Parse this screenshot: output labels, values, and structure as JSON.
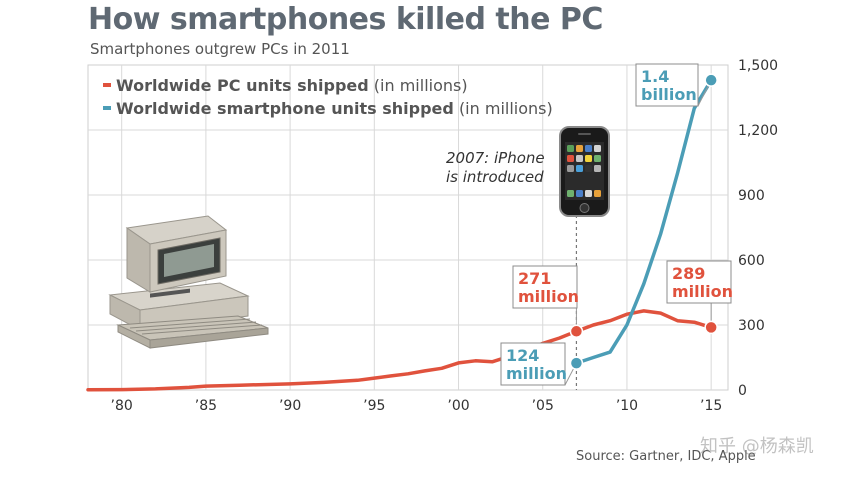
{
  "title": "How smartphones killed the PC",
  "subtitle": "Smartphones outgrew PCs in 2011",
  "source": "Source: Gartner, IDC, Apple",
  "watermark": "知乎 @杨森凯",
  "colors": {
    "pc": "#e0523d",
    "smartphone": "#4b9db6",
    "grid": "#d9d9d9",
    "title": "#5f6973"
  },
  "annotation": {
    "line1": "2007: iPhone",
    "line2": "is introduced"
  },
  "chart_data": {
    "type": "line",
    "title": "How smartphones killed the PC",
    "subtitle": "Smartphones outgrew PCs in 2011",
    "xlabel": "",
    "ylabel": "",
    "xlim": [
      1978,
      2016
    ],
    "ylim": [
      0,
      1500
    ],
    "x_ticks": [
      1980,
      1985,
      1990,
      1995,
      2000,
      2005,
      2010,
      2015
    ],
    "x_tick_labels": [
      "’80",
      "’85",
      "’90",
      "’95",
      "’00",
      "’05",
      "’10",
      "’15"
    ],
    "y_ticks": [
      0,
      300,
      600,
      900,
      1200,
      1500
    ],
    "y_tick_labels": [
      "0",
      "300",
      "600",
      "900",
      "1,200",
      "1,500"
    ],
    "y_axis_side": "right",
    "grid": true,
    "legend_position": "top-left",
    "series": [
      {
        "name": "Worldwide PC units shipped",
        "name_suffix": "(in millions)",
        "color": "#e0523d",
        "x": [
          1978,
          1980,
          1982,
          1984,
          1985,
          1987,
          1990,
          1992,
          1994,
          1995,
          1996,
          1997,
          1998,
          1999,
          2000,
          2001,
          2002,
          2003,
          2004,
          2005,
          2006,
          2007,
          2008,
          2009,
          2010,
          2011,
          2012,
          2013,
          2014,
          2015
        ],
        "y": [
          1,
          2,
          5,
          12,
          18,
          22,
          28,
          35,
          45,
          55,
          65,
          75,
          88,
          100,
          125,
          135,
          130,
          155,
          185,
          215,
          240,
          271,
          300,
          320,
          350,
          365,
          355,
          320,
          313,
          289
        ]
      },
      {
        "name": "Worldwide smartphone units shipped",
        "name_suffix": "(in millions)",
        "color": "#4b9db6",
        "x": [
          2007,
          2008,
          2009,
          2010,
          2011,
          2012,
          2013,
          2014,
          2015
        ],
        "y": [
          124,
          150,
          175,
          300,
          490,
          720,
          1000,
          1300,
          1430
        ]
      }
    ],
    "callouts": [
      {
        "series": 0,
        "x": 2007,
        "y": 271,
        "line1": "271",
        "line2": "million"
      },
      {
        "series": 0,
        "x": 2015,
        "y": 289,
        "line1": "289",
        "line2": "million"
      },
      {
        "series": 1,
        "x": 2007,
        "y": 124,
        "line1": "124",
        "line2": "million"
      },
      {
        "series": 1,
        "x": 2015,
        "y": 1430,
        "line1": "1.4",
        "line2": "billion"
      }
    ],
    "marker_line_x": 2007
  }
}
